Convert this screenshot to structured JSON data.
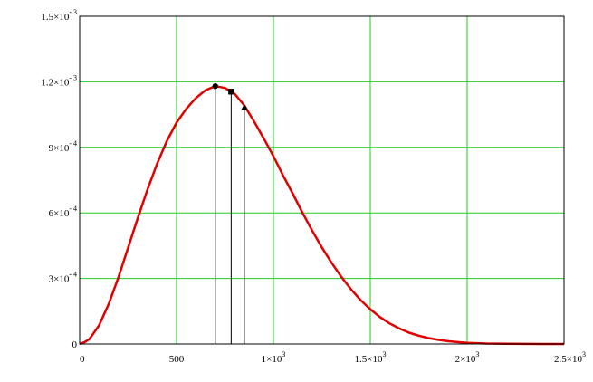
{
  "chart_data": {
    "type": "line",
    "xlim": [
      0,
      2500
    ],
    "ylim": [
      0,
      0.0015
    ],
    "x_ticks": [
      {
        "value": 0,
        "label": "0",
        "sup": ""
      },
      {
        "value": 500,
        "label": "500",
        "sup": ""
      },
      {
        "value": 1000,
        "label": "1×10",
        "sup": "3"
      },
      {
        "value": 1500,
        "label": "1.5×10",
        "sup": "3"
      },
      {
        "value": 2000,
        "label": "2×10",
        "sup": "3"
      },
      {
        "value": 2500,
        "label": "2.5×10",
        "sup": "3"
      }
    ],
    "y_ticks": [
      {
        "value": 0,
        "label": "0",
        "sup": ""
      },
      {
        "value": 0.0003,
        "label": "3×10",
        "sup": "- 4"
      },
      {
        "value": 0.0006,
        "label": "6×10",
        "sup": "- 4"
      },
      {
        "value": 0.0009,
        "label": "9×10",
        "sup": "- 4"
      },
      {
        "value": 0.0012,
        "label": "1.2×10",
        "sup": "- 3"
      },
      {
        "value": 0.0015,
        "label": "1.5×10",
        "sup": "- 3"
      }
    ],
    "grid": true,
    "grid_color": "#22cc22",
    "series": [
      {
        "color": "#e00000",
        "x": [
          0,
          25,
          50,
          100,
          150,
          200,
          250,
          300,
          350,
          400,
          450,
          500,
          550,
          600,
          650,
          700,
          750,
          800,
          850,
          900,
          950,
          1000,
          1050,
          1100,
          1150,
          1200,
          1250,
          1300,
          1350,
          1400,
          1450,
          1500,
          1550,
          1600,
          1650,
          1700,
          1750,
          1800,
          1850,
          1900,
          1950,
          2000,
          2100,
          2200,
          2300,
          2400,
          2500
        ],
        "y": [
          0,
          7.7e-06,
          2.2e-05,
          8.5e-05,
          0.000183,
          0.000305,
          0.000441,
          0.000577,
          0.000707,
          0.000826,
          0.000929,
          0.001013,
          0.001076,
          0.001126,
          0.001162,
          0.00118,
          0.001172,
          0.001145,
          0.001092,
          0.001019,
          0.000941,
          0.00086,
          0.000771,
          0.000688,
          0.000601,
          0.000519,
          0.000442,
          0.000372,
          0.000308,
          0.000251,
          0.000201,
          0.000159,
          0.000123,
          9.4e-05,
          7.1e-05,
          5.2e-05,
          3.8e-05,
          2.7e-05,
          1.9e-05,
          1.3e-05,
          8.5e-06,
          5.5e-06,
          2.1e-06,
          8e-07,
          3e-07,
          1e-07,
          0
        ]
      }
    ],
    "markers": [
      {
        "shape": "circle",
        "x": 700,
        "y": 0.00118
      },
      {
        "shape": "square",
        "x": 782,
        "y": 0.001155
      },
      {
        "shape": "triangle",
        "x": 850,
        "y": 0.001082
      }
    ],
    "drop_lines": [
      700,
      782,
      850
    ]
  }
}
